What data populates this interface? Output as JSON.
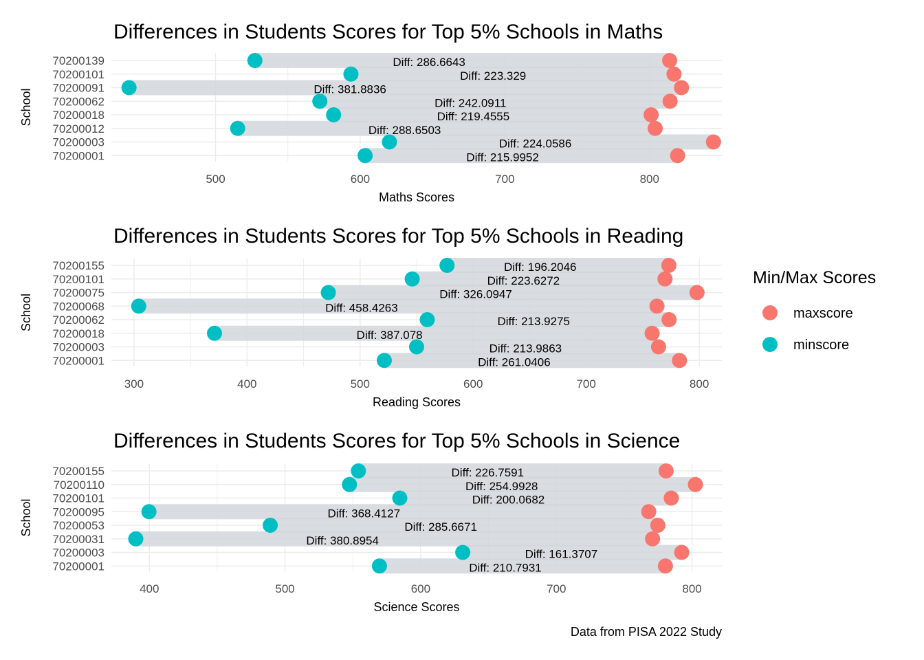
{
  "chart_data": [
    {
      "type": "dumbbell",
      "title": "Differences in Students Scores for Top 5% Schools in Maths",
      "xlabel": "Maths Scores",
      "ylabel": "School",
      "xlim": [
        428,
        850
      ],
      "xticks": [
        500,
        600,
        700,
        800
      ],
      "grid": true,
      "categories": [
        "70200139",
        "70200101",
        "70200091",
        "70200062",
        "70200018",
        "70200012",
        "70200003",
        "70200001"
      ],
      "minscore": [
        527.2,
        593.6,
        440.2,
        572.1,
        581.6,
        515.3,
        620.2,
        603.4
      ],
      "maxscore": [
        813.9,
        816.9,
        822.1,
        814.2,
        801.1,
        803.9,
        844.2,
        819.4
      ],
      "labels": [
        "Diff:  286.6643",
        "Diff:  223.329",
        "Diff:  381.8836",
        "Diff:  242.0911",
        "Diff:  219.4555",
        "Diff:  288.6503",
        "Diff:  224.0586",
        "Diff:  215.9952"
      ]
    },
    {
      "type": "dumbbell",
      "title": "Differences in Students Scores for Top 5% Schools in Reading",
      "xlabel": "Reading Scores",
      "ylabel": "School",
      "xlim": [
        280,
        820
      ],
      "xticks": [
        300,
        400,
        500,
        600,
        700,
        800
      ],
      "grid": true,
      "categories": [
        "70200155",
        "70200101",
        "70200075",
        "70200068",
        "70200062",
        "70200018",
        "70200003",
        "70200001"
      ],
      "minscore": [
        576.9,
        546.1,
        471.9,
        304.2,
        559.4,
        371.2,
        550.0,
        521.4
      ],
      "maxscore": [
        773.1,
        769.7,
        798.0,
        762.6,
        773.3,
        758.3,
        764.0,
        782.5
      ],
      "labels": [
        "Diff:  196.2046",
        "Diff:  223.6272",
        "Diff:  326.0947",
        "Diff:  458.4263",
        "Diff:  213.9275",
        "Diff:  387.078",
        "Diff:  213.9863",
        "Diff:  261.0406"
      ]
    },
    {
      "type": "dumbbell",
      "title": "Differences in Students Scores for Top 5% Schools in Science",
      "xlabel": "Science Scores",
      "ylabel": "School",
      "xlim": [
        372,
        822
      ],
      "xticks": [
        400,
        500,
        600,
        700,
        800
      ],
      "grid": true,
      "categories": [
        "70200155",
        "70200110",
        "70200101",
        "70200095",
        "70200053",
        "70200031",
        "70200003",
        "70200001"
      ],
      "minscore": [
        554.1,
        547.5,
        584.6,
        399.7,
        489.1,
        390.0,
        631.0,
        569.6
      ],
      "maxscore": [
        780.9,
        802.5,
        784.7,
        768.1,
        774.8,
        770.9,
        792.4,
        780.4
      ],
      "labels": [
        "Diff:  226.7591",
        "Diff:  254.9928",
        "Diff:  200.0682",
        "Diff:  368.4127",
        "Diff:  285.6671",
        "Diff:  380.8954",
        "Diff:  161.3707",
        "Diff:  210.7931"
      ]
    }
  ],
  "legend": {
    "title": "Min/Max Scores",
    "placement": "right",
    "items": [
      {
        "name": "maxscore",
        "color": "#F8766D"
      },
      {
        "name": "minscore",
        "color": "#00BFC4"
      }
    ]
  },
  "caption": "Data from PISA 2022 Study",
  "colors": {
    "max": "#F8766D",
    "min": "#00BFC4",
    "segment": "#d2d7dc",
    "grid": "#ebebeb"
  }
}
